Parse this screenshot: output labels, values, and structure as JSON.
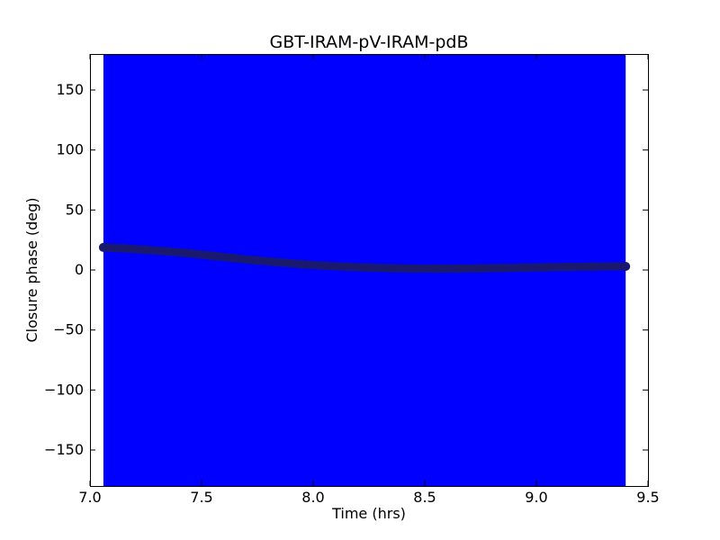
{
  "chart_data": {
    "type": "scatter",
    "title": "GBT-IRAM-pV-IRAM-pdB",
    "xlabel": "Time (hrs)",
    "ylabel": "Closure phase (deg)",
    "xlim": [
      7.0,
      9.5
    ],
    "ylim": [
      -180,
      180
    ],
    "x_ticks": [
      7.0,
      7.5,
      8.0,
      8.5,
      9.0,
      9.5
    ],
    "x_tick_labels": [
      "7.0",
      "7.5",
      "8.0",
      "8.5",
      "9.0",
      "9.5"
    ],
    "y_ticks": [
      150,
      100,
      50,
      0,
      -50,
      -100,
      -150
    ],
    "y_tick_labels": [
      "150",
      "100",
      "50",
      "0",
      "−50",
      "−100",
      "−150"
    ],
    "grid": false,
    "error_band": {
      "description": "phase error bars spanning full range",
      "x_range": [
        7.06,
        9.4
      ],
      "y_range": [
        -180,
        180
      ],
      "color": "#0000ff"
    },
    "series": [
      {
        "marker_color": "#191970",
        "points": [
          {
            "x": 7.06,
            "y": 18.8
          },
          {
            "x": 7.15,
            "y": 18.0
          },
          {
            "x": 7.25,
            "y": 16.8
          },
          {
            "x": 7.35,
            "y": 15.5
          },
          {
            "x": 7.45,
            "y": 13.8
          },
          {
            "x": 7.55,
            "y": 11.8
          },
          {
            "x": 7.65,
            "y": 9.8
          },
          {
            "x": 7.75,
            "y": 7.9
          },
          {
            "x": 7.85,
            "y": 6.3
          },
          {
            "x": 7.95,
            "y": 4.8
          },
          {
            "x": 8.05,
            "y": 3.6
          },
          {
            "x": 8.15,
            "y": 2.7
          },
          {
            "x": 8.25,
            "y": 2.0
          },
          {
            "x": 8.35,
            "y": 1.5
          },
          {
            "x": 8.45,
            "y": 1.2
          },
          {
            "x": 8.55,
            "y": 1.1
          },
          {
            "x": 8.65,
            "y": 1.2
          },
          {
            "x": 8.75,
            "y": 1.4
          },
          {
            "x": 8.85,
            "y": 1.7
          },
          {
            "x": 8.95,
            "y": 2.0
          },
          {
            "x": 9.05,
            "y": 2.3
          },
          {
            "x": 9.15,
            "y": 2.6
          },
          {
            "x": 9.25,
            "y": 2.8
          },
          {
            "x": 9.35,
            "y": 3.0
          },
          {
            "x": 9.4,
            "y": 3.0
          }
        ]
      }
    ]
  }
}
